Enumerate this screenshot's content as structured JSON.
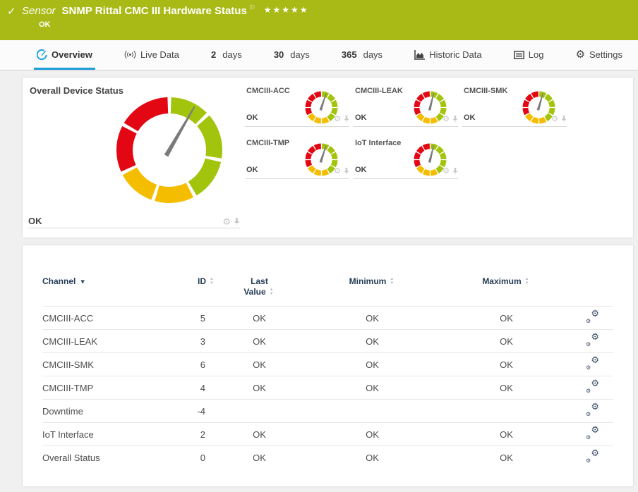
{
  "icons": {
    "check": "✓",
    "flag": "⚐",
    "stars": "★★★★★",
    "gear": "⚙"
  },
  "colors": {
    "header_bg": "#a9ba16",
    "green": "#a3c40c",
    "yellow": "#f5bd00",
    "red": "#e30613",
    "needle": "#7b7b7b",
    "accent_blue": "#1e9ed9",
    "table_header": "#253c55"
  },
  "header": {
    "kind": "Sensor",
    "title": "SNMP Rittal CMC III Hardware Status",
    "status": "OK",
    "priority_stars": 5
  },
  "tabs": [
    {
      "label": "Overview",
      "active": true
    },
    {
      "label": "Live Data"
    },
    {
      "num": "2",
      "label": "days"
    },
    {
      "num": "30",
      "label": "days"
    },
    {
      "num": "365",
      "label": "days"
    },
    {
      "label": "Historic Data"
    },
    {
      "label": "Log"
    },
    {
      "label": "Settings"
    }
  ],
  "overview": {
    "main": {
      "title": "Overall Device Status",
      "status": "OK",
      "needle_deg": 30
    },
    "minis": [
      {
        "label": "CMCIII-ACC",
        "status": "OK",
        "needle_deg": 18
      },
      {
        "label": "CMCIII-LEAK",
        "status": "OK",
        "needle_deg": 14
      },
      {
        "label": "CMCIII-SMK",
        "status": "OK",
        "needle_deg": 16
      },
      {
        "label": "CMCIII-TMP",
        "status": "OK",
        "needle_deg": 18
      },
      {
        "label": "IoT Interface",
        "status": "OK",
        "needle_deg": 14
      }
    ]
  },
  "table": {
    "columns": [
      "Channel",
      "ID",
      "Last Value",
      "Minimum",
      "Maximum"
    ],
    "rows": [
      {
        "channel": "CMCIII-ACC",
        "id": "5",
        "last": "OK",
        "min": "OK",
        "max": "OK"
      },
      {
        "channel": "CMCIII-LEAK",
        "id": "3",
        "last": "OK",
        "min": "OK",
        "max": "OK"
      },
      {
        "channel": "CMCIII-SMK",
        "id": "6",
        "last": "OK",
        "min": "OK",
        "max": "OK"
      },
      {
        "channel": "CMCIII-TMP",
        "id": "4",
        "last": "OK",
        "min": "OK",
        "max": "OK"
      },
      {
        "channel": "Downtime",
        "id": "-4",
        "last": "",
        "min": "",
        "max": ""
      },
      {
        "channel": "IoT Interface",
        "id": "2",
        "last": "OK",
        "min": "OK",
        "max": "OK"
      },
      {
        "channel": "Overall Status",
        "id": "0",
        "last": "OK",
        "min": "OK",
        "max": "OK"
      }
    ]
  }
}
